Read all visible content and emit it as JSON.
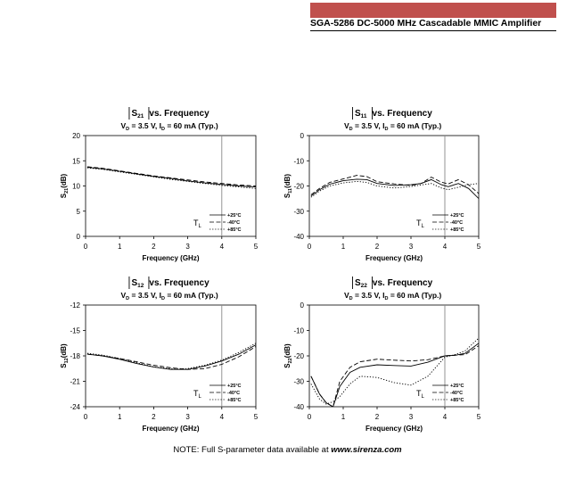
{
  "header": {
    "title": "SGA-5286 DC-5000 MHz Cascadable MMIC Amplifier",
    "bar_color": "#c0504d"
  },
  "footer": {
    "prefix": "NOTE: Full S-parameter data available at ",
    "link": "www.sirenza.com"
  },
  "chart_data": [
    {
      "type": "line",
      "param": "21",
      "title_suffix": "vs. Frequency",
      "subtitle_main": "3.5 V, I",
      "subtitle_end": "= 60 mA (Typ.)",
      "xlabel": "Frequency (GHz)",
      "ylabel": "(dB)",
      "xlim": [
        0,
        5
      ],
      "ylim": [
        0,
        20
      ],
      "xticks": [
        0,
        1,
        2,
        3,
        4,
        5
      ],
      "yticks": [
        0,
        5,
        10,
        15,
        20
      ],
      "vline": 4,
      "legend": {
        "label": "T",
        "sub": "L",
        "entries": [
          "+25°C",
          "-40°C",
          "+85°C"
        ]
      },
      "series": [
        {
          "name": "+25°C",
          "style": "solid",
          "x": [
            0.05,
            0.5,
            1,
            1.5,
            2,
            2.5,
            3,
            3.5,
            4,
            4.5,
            5
          ],
          "y": [
            13.7,
            13.4,
            12.9,
            12.4,
            11.9,
            11.5,
            11.0,
            10.6,
            10.3,
            10.0,
            9.8
          ]
        },
        {
          "name": "-40°C",
          "style": "dashed",
          "x": [
            0.05,
            0.5,
            1,
            1.5,
            2,
            2.5,
            3,
            3.5,
            4,
            4.5,
            5
          ],
          "y": [
            13.8,
            13.5,
            13.0,
            12.5,
            12.0,
            11.6,
            11.2,
            10.8,
            10.5,
            10.2,
            10.0
          ]
        },
        {
          "name": "+85°C",
          "style": "dotted",
          "x": [
            0.05,
            0.5,
            1,
            1.5,
            2,
            2.5,
            3,
            3.5,
            4,
            4.5,
            5
          ],
          "y": [
            13.6,
            13.3,
            12.8,
            12.3,
            11.8,
            11.3,
            10.9,
            10.5,
            10.1,
            9.8,
            9.5
          ]
        }
      ]
    },
    {
      "type": "line",
      "param": "11",
      "title_suffix": "vs. Frequency",
      "subtitle_main": "3.5 V, I",
      "subtitle_end": "= 60 mA (Typ.)",
      "xlabel": "Frequency (GHz)",
      "ylabel": "(dB)",
      "xlim": [
        0,
        5
      ],
      "ylim": [
        -40,
        0
      ],
      "xticks": [
        0,
        1,
        2,
        3,
        4,
        5
      ],
      "yticks": [
        -40,
        -30,
        -20,
        -10,
        0
      ],
      "vline": 4,
      "legend": {
        "label": "T",
        "sub": "L",
        "entries": [
          "+25°C",
          "-40°C",
          "+85°C"
        ]
      },
      "series": [
        {
          "name": "+25°C",
          "style": "solid",
          "x": [
            0.05,
            0.3,
            0.6,
            1,
            1.4,
            1.7,
            2,
            2.5,
            3,
            3.3,
            3.6,
            3.9,
            4.1,
            4.4,
            4.7,
            5
          ],
          "y": [
            -24,
            -21.5,
            -19.3,
            -17.9,
            -17.3,
            -17.5,
            -19,
            -19.8,
            -19.5,
            -19,
            -17.5,
            -19.5,
            -20.3,
            -19,
            -21,
            -25
          ]
        },
        {
          "name": "-40°C",
          "style": "dashed",
          "x": [
            0.05,
            0.3,
            0.6,
            1,
            1.4,
            1.7,
            2,
            2.5,
            3,
            3.3,
            3.6,
            3.9,
            4.1,
            4.4,
            4.7,
            5
          ],
          "y": [
            -23.5,
            -21,
            -18.6,
            -17.2,
            -15.8,
            -16.3,
            -18.3,
            -19.2,
            -19.8,
            -19,
            -16.5,
            -18.5,
            -19.2,
            -17.5,
            -19.5,
            -23
          ]
        },
        {
          "name": "+85°C",
          "style": "dotted",
          "x": [
            0.05,
            0.3,
            0.6,
            1,
            1.4,
            1.7,
            2,
            2.5,
            3,
            3.3,
            3.6,
            3.9,
            4.1,
            4.4,
            4.7,
            5
          ],
          "y": [
            -24.5,
            -22,
            -20,
            -18.8,
            -18.2,
            -18.6,
            -20,
            -20.8,
            -20.2,
            -19.6,
            -19,
            -20.8,
            -21.5,
            -20.5,
            -19.5,
            -19
          ]
        }
      ]
    },
    {
      "type": "line",
      "param": "12",
      "title_suffix": "vs. Frequency",
      "subtitle_main": "3.5 V, I",
      "subtitle_end": "= 60 mA (Typ.)",
      "xlabel": "Frequency (GHz)",
      "ylabel": "(dB)",
      "xlim": [
        0,
        5
      ],
      "ylim": [
        -24,
        -12
      ],
      "xticks": [
        0,
        1,
        2,
        3,
        4,
        5
      ],
      "yticks": [
        -24,
        -21,
        -18,
        -15,
        -12
      ],
      "vline": 4,
      "legend": {
        "label": "T",
        "sub": "L",
        "entries": [
          "+25°C",
          "-40°C",
          "+85°C"
        ]
      },
      "series": [
        {
          "name": "+25°C",
          "style": "solid",
          "x": [
            0.05,
            0.5,
            1,
            1.5,
            2,
            2.5,
            3,
            3.5,
            4,
            4.5,
            5
          ],
          "y": [
            -17.8,
            -18.0,
            -18.4,
            -18.9,
            -19.3,
            -19.6,
            -19.6,
            -19.2,
            -18.6,
            -17.8,
            -16.7
          ]
        },
        {
          "name": "-40°C",
          "style": "dashed",
          "x": [
            0.05,
            0.5,
            1,
            1.5,
            2,
            2.5,
            3,
            3.5,
            4,
            4.5,
            5
          ],
          "y": [
            -17.8,
            -18.0,
            -18.3,
            -18.7,
            -19.1,
            -19.4,
            -19.6,
            -19.5,
            -19.0,
            -18.1,
            -16.9
          ]
        },
        {
          "name": "+85°C",
          "style": "dotted",
          "x": [
            0.05,
            0.5,
            1,
            1.5,
            2,
            2.5,
            3,
            3.5,
            4,
            4.5,
            5
          ],
          "y": [
            -17.7,
            -17.9,
            -18.3,
            -18.8,
            -19.3,
            -19.5,
            -19.5,
            -19.1,
            -18.5,
            -17.6,
            -16.5
          ]
        }
      ]
    },
    {
      "type": "line",
      "param": "22",
      "title_suffix": "vs. Frequency",
      "subtitle_main": "3.5 V, I",
      "subtitle_end": "= 60 mA (Typ.)",
      "xlabel": "Frequency (GHz)",
      "ylabel": "(dB)",
      "xlim": [
        0,
        5
      ],
      "ylim": [
        -40,
        0
      ],
      "xticks": [
        0,
        1,
        2,
        3,
        4,
        5
      ],
      "yticks": [
        -40,
        -30,
        -20,
        -10,
        0
      ],
      "vline": 4,
      "legend": {
        "label": "T",
        "sub": "L",
        "entries": [
          "+25°C",
          "-40°C",
          "+85°C"
        ]
      },
      "series": [
        {
          "name": "+25°C",
          "style": "solid",
          "x": [
            0.05,
            0.3,
            0.5,
            0.7,
            0.9,
            1.2,
            1.5,
            2,
            2.5,
            3,
            3.5,
            4,
            4.3,
            4.6,
            5
          ],
          "y": [
            -28,
            -35,
            -38.5,
            -40,
            -32,
            -26.5,
            -24.5,
            -23.5,
            -23.8,
            -24,
            -22.5,
            -20,
            -19.8,
            -19,
            -15
          ]
        },
        {
          "name": "-40°C",
          "style": "dashed",
          "x": [
            0.05,
            0.3,
            0.5,
            0.7,
            0.9,
            1.2,
            1.5,
            2,
            2.5,
            3,
            3.5,
            4,
            4.3,
            4.6,
            5
          ],
          "y": [
            -28,
            -35,
            -38.5,
            -40,
            -30,
            -24.5,
            -22.3,
            -21.3,
            -21.7,
            -22,
            -21.5,
            -20,
            -19.7,
            -19.5,
            -16
          ]
        },
        {
          "name": "+85°C",
          "style": "dotted",
          "x": [
            0.05,
            0.3,
            0.5,
            0.7,
            0.9,
            1.2,
            1.5,
            2,
            2.5,
            3,
            3.5,
            4,
            4.3,
            4.6,
            5
          ],
          "y": [
            -31,
            -37,
            -39,
            -38,
            -36,
            -31,
            -28,
            -28.5,
            -30.5,
            -31.5,
            -28,
            -20.5,
            -19.5,
            -18,
            -13
          ]
        }
      ]
    }
  ]
}
